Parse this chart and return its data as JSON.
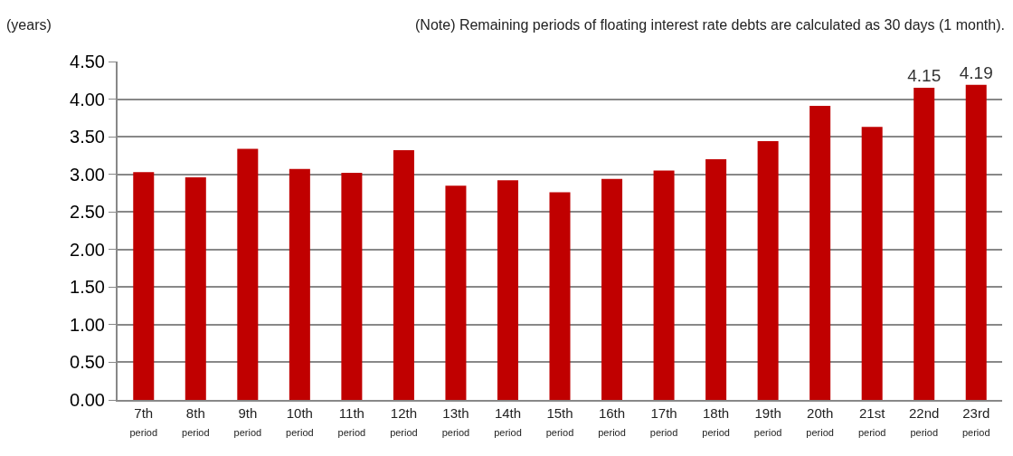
{
  "chart_data": {
    "type": "bar",
    "ylabel": "(years)",
    "annotations": [
      "(Note) Remaining periods of floating interest rate debts are calculated as 30 days (1 month)."
    ],
    "categories": [
      "7th period",
      "8th period",
      "9th period",
      "10th period",
      "11th period",
      "12th period",
      "13th period",
      "14th period",
      "15th period",
      "16th period",
      "17th period",
      "18th period",
      "19th period",
      "20th period",
      "21st period",
      "22nd period",
      "23rd period"
    ],
    "values": [
      3.03,
      2.96,
      3.34,
      3.07,
      3.02,
      3.32,
      2.85,
      2.92,
      2.76,
      2.94,
      3.05,
      3.2,
      3.44,
      3.91,
      3.63,
      4.15,
      4.19
    ],
    "value_labels": [
      null,
      null,
      null,
      null,
      null,
      null,
      null,
      null,
      null,
      null,
      null,
      null,
      null,
      null,
      null,
      "4.15",
      "4.19"
    ],
    "color": "#c00000",
    "ylim": [
      0,
      4.5
    ],
    "yticks": [
      {
        "value": 0,
        "label": "0.00"
      },
      {
        "value": 0.5,
        "label": "0.50"
      },
      {
        "value": 1,
        "label": "1.00"
      },
      {
        "value": 1.5,
        "label": "1.50"
      },
      {
        "value": 2,
        "label": "2.00"
      },
      {
        "value": 2.5,
        "label": "2.50"
      },
      {
        "value": 3,
        "label": "3.00"
      },
      {
        "value": 3.5,
        "label": "3.50"
      },
      {
        "value": 4,
        "label": "4.00"
      },
      {
        "value": 4.5,
        "label": "4.50"
      }
    ],
    "grid": "y",
    "legend": false
  }
}
